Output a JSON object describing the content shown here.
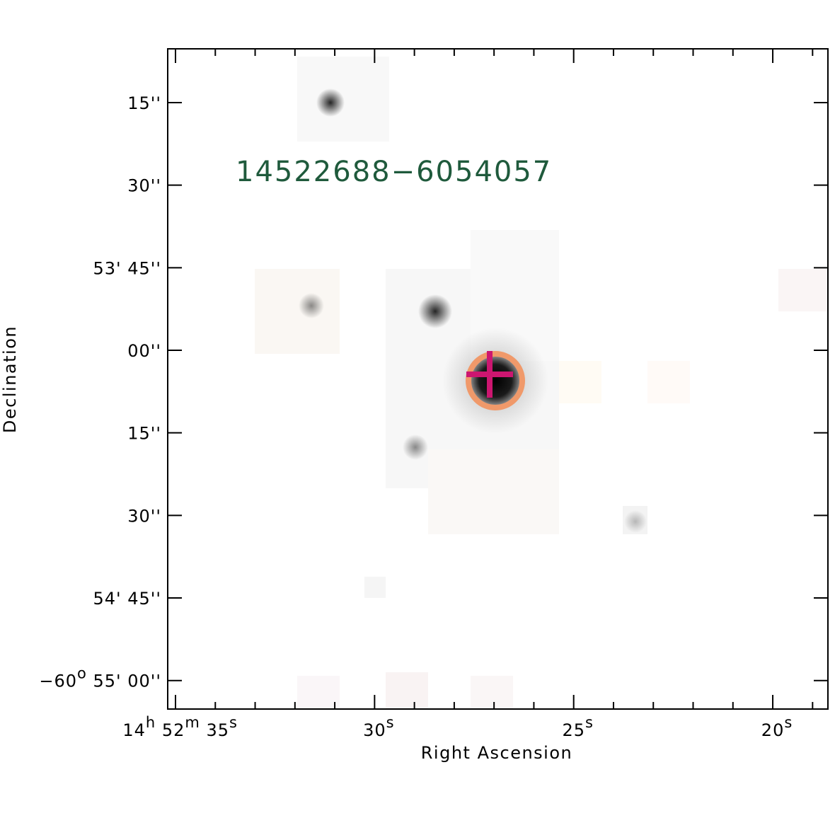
{
  "figure": {
    "source_label": "14522688−6054057",
    "xlabel": "Right Ascension",
    "ylabel": "Declination",
    "colors": {
      "frame": "#000000",
      "source_label": "#1f5a3c",
      "circle": "#f0996a",
      "cross": "#cc1670"
    },
    "ra_ticks": [
      {
        "value": 35,
        "parts": [
          {
            "t": "14"
          },
          {
            "t": "h",
            "sup": true
          },
          {
            "t": " 52"
          },
          {
            "t": "m",
            "sup": true
          },
          {
            "t": " 35"
          },
          {
            "t": "s",
            "sup": true
          }
        ]
      },
      {
        "value": 30,
        "parts": [
          {
            "t": "30"
          },
          {
            "t": "s",
            "sup": true
          }
        ]
      },
      {
        "value": 25,
        "parts": [
          {
            "t": "25"
          },
          {
            "t": "s",
            "sup": true
          }
        ]
      },
      {
        "value": 20,
        "parts": [
          {
            "t": "20"
          },
          {
            "t": "s",
            "sup": true
          }
        ]
      }
    ],
    "dec_ticks": [
      {
        "value": 15,
        "parts": [
          {
            "t": "15''"
          }
        ]
      },
      {
        "value": 30,
        "parts": [
          {
            "t": "30''"
          }
        ]
      },
      {
        "value": 45,
        "parts": [
          {
            "t": "53' 45''"
          }
        ]
      },
      {
        "value": 60,
        "parts": [
          {
            "t": "00''"
          }
        ]
      },
      {
        "value": 75,
        "parts": [
          {
            "t": "15''"
          }
        ]
      },
      {
        "value": 90,
        "parts": [
          {
            "t": "30''"
          }
        ]
      },
      {
        "value": 105,
        "parts": [
          {
            "t": "54' 45''"
          }
        ]
      },
      {
        "value": 120,
        "parts": [
          {
            "t": "−60"
          },
          {
            "t": "o",
            "sup": true
          },
          {
            "t": " 55' 00''"
          }
        ]
      }
    ]
  }
}
